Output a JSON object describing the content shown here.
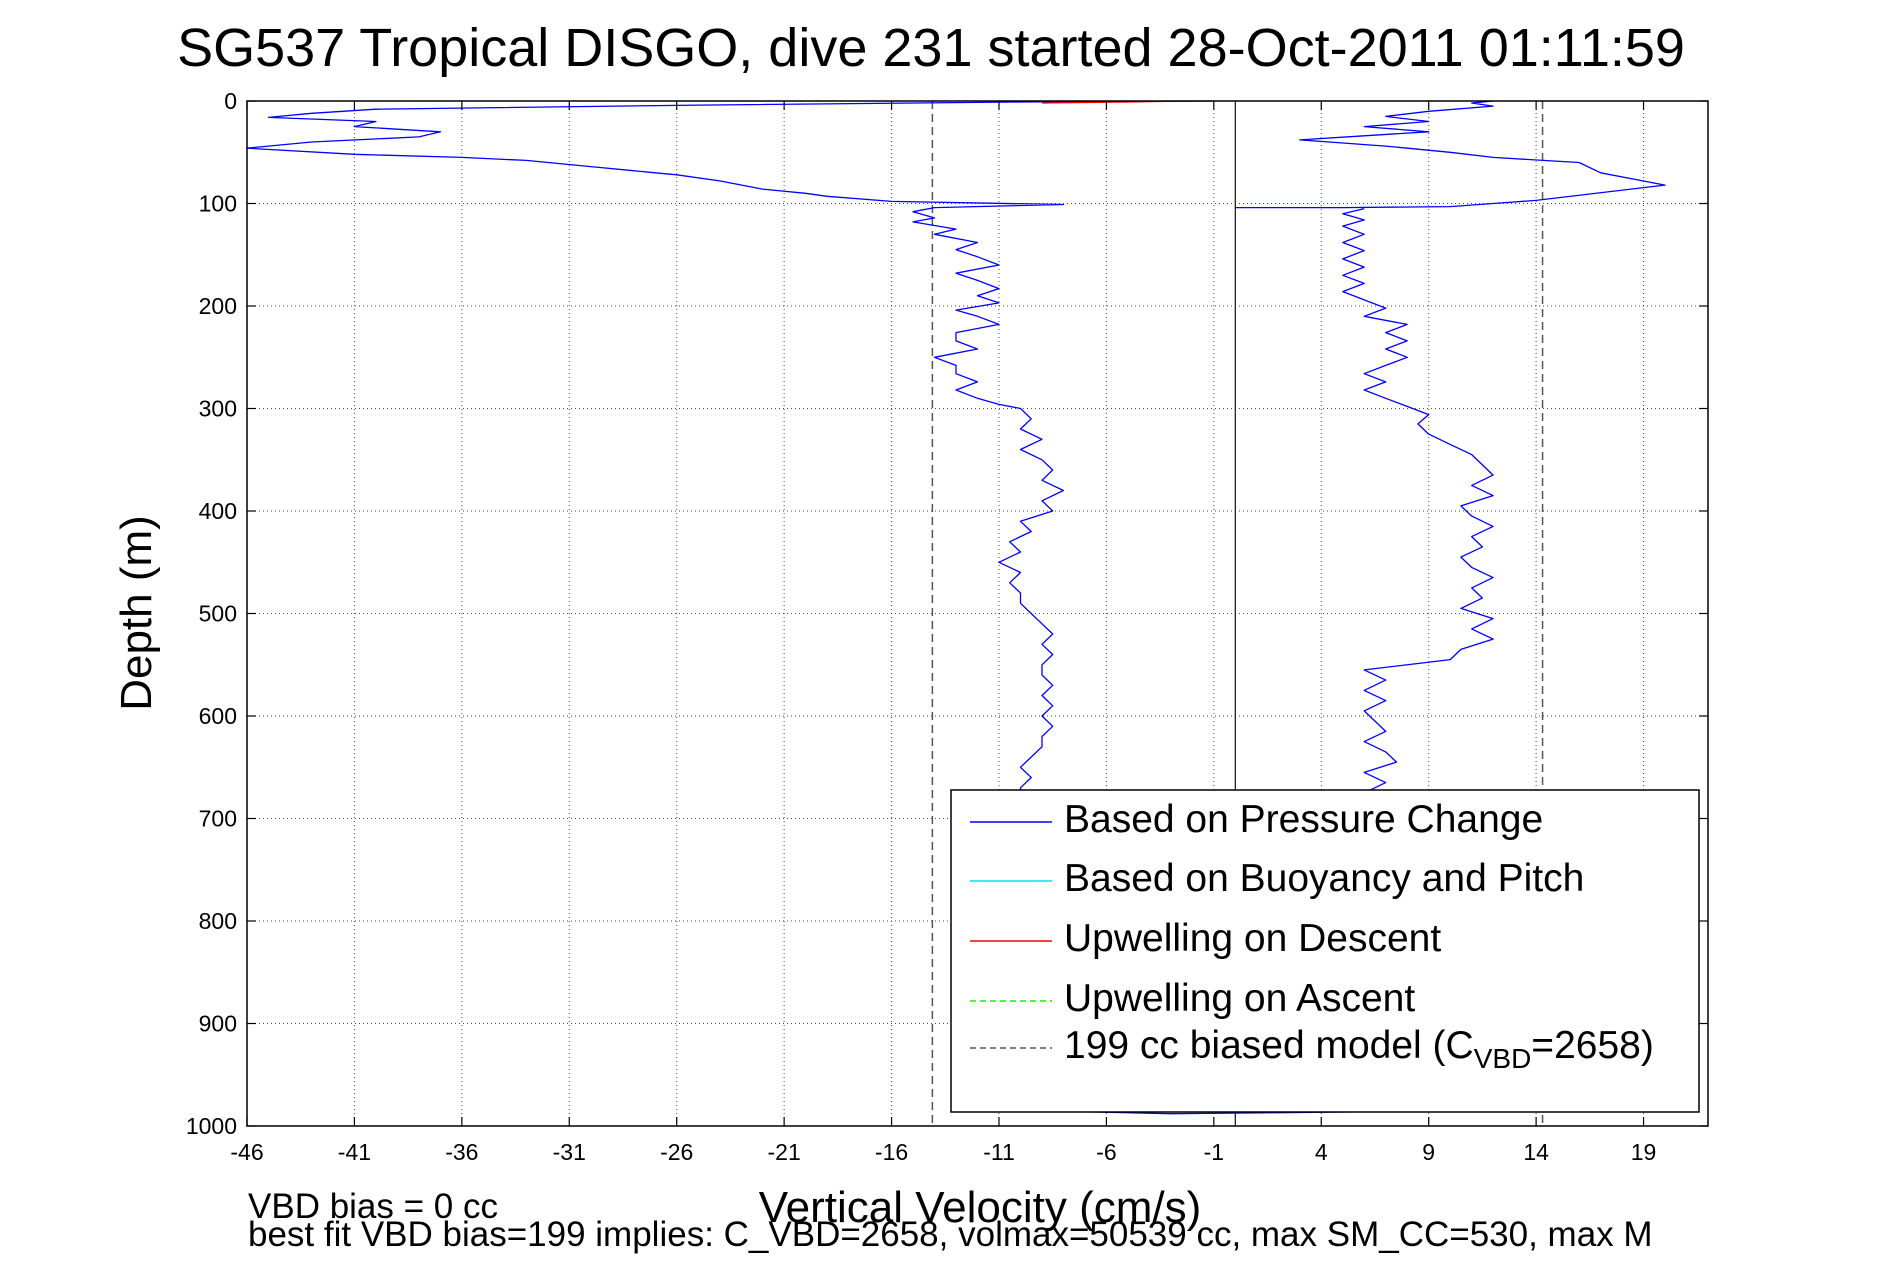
{
  "chart_data": {
    "type": "line",
    "title": "SG537 Tropical DISGO, dive 231 started 28-Oct-2011 01:11:59",
    "xlabel": "Vertical Velocity (cm/s)",
    "ylabel": "Depth (m)",
    "xlim": [
      -46,
      22
    ],
    "ylim": [
      0,
      1000
    ],
    "y_reversed": true,
    "x_ticks": [
      -46,
      -41,
      -36,
      -31,
      -26,
      -21,
      -16,
      -11,
      -6,
      -1,
      4,
      9,
      14,
      19
    ],
    "y_ticks": [
      0,
      100,
      200,
      300,
      400,
      500,
      600,
      700,
      800,
      900,
      1000
    ],
    "grid": true,
    "legend_position": "bottom-right",
    "reference_lines": {
      "model_bias_descent": -14.1,
      "model_bias_ascent": 14.3,
      "zero_line": 0
    },
    "series": [
      {
        "name": "Based on Pressure Change",
        "color": "#0000ff",
        "style": "solid",
        "segments": [
          [
            [
              -1,
              0
            ],
            [
              -10,
              1
            ],
            [
              -25,
              4
            ],
            [
              -40,
              8
            ],
            [
              -43,
              12
            ],
            [
              -45,
              16
            ],
            [
              -40,
              20
            ],
            [
              -41,
              25
            ],
            [
              -37,
              30
            ],
            [
              -38,
              35
            ],
            [
              -43,
              40
            ],
            [
              -46,
              46
            ],
            [
              -41,
              52
            ],
            [
              -36,
              55
            ],
            [
              -33,
              58
            ],
            [
              -30,
              64
            ],
            [
              -27,
              70
            ],
            [
              -26,
              72
            ],
            [
              -24,
              78
            ],
            [
              -22,
              86
            ],
            [
              -20,
              90
            ],
            [
              -19,
              93
            ],
            [
              -16,
              98
            ],
            [
              -8,
              101
            ],
            [
              -14,
              104
            ],
            [
              -15,
              108
            ],
            [
              -14,
              114
            ],
            [
              -15,
              118
            ],
            [
              -13,
              125
            ],
            [
              -14,
              130
            ],
            [
              -12,
              138
            ],
            [
              -13,
              145
            ],
            [
              -12,
              152
            ],
            [
              -11,
              160
            ],
            [
              -13,
              168
            ],
            [
              -12,
              175
            ],
            [
              -11,
              183
            ],
            [
              -12,
              190
            ],
            [
              -11,
              197
            ],
            [
              -13,
              204
            ],
            [
              -12,
              210
            ],
            [
              -11,
              218
            ],
            [
              -13,
              226
            ],
            [
              -13,
              234
            ],
            [
              -12,
              242
            ],
            [
              -14,
              250
            ],
            [
              -13,
              258
            ],
            [
              -13,
              266
            ],
            [
              -12,
              274
            ],
            [
              -13,
              282
            ],
            [
              -12,
              290
            ],
            [
              -11,
              296
            ],
            [
              -10,
              300
            ],
            [
              -9.5,
              310
            ],
            [
              -10,
              320
            ],
            [
              -9,
              330
            ],
            [
              -10,
              340
            ],
            [
              -9,
              350
            ],
            [
              -8.5,
              360
            ],
            [
              -9,
              370
            ],
            [
              -8,
              380
            ],
            [
              -9,
              390
            ],
            [
              -8.5,
              400
            ],
            [
              -10,
              410
            ],
            [
              -9.5,
              420
            ],
            [
              -10.5,
              430
            ],
            [
              -10,
              440
            ],
            [
              -11,
              450
            ],
            [
              -10,
              460
            ],
            [
              -10.5,
              470
            ],
            [
              -10,
              480
            ],
            [
              -10,
              490
            ],
            [
              -9.5,
              500
            ],
            [
              -9,
              510
            ],
            [
              -8.5,
              520
            ],
            [
              -9,
              530
            ],
            [
              -8.5,
              540
            ],
            [
              -9,
              550
            ],
            [
              -9,
              560
            ],
            [
              -8.5,
              570
            ],
            [
              -9,
              580
            ],
            [
              -8.5,
              590
            ],
            [
              -9,
              600
            ],
            [
              -8.5,
              610
            ],
            [
              -9,
              620
            ],
            [
              -9,
              630
            ],
            [
              -9.5,
              640
            ],
            [
              -10,
              650
            ],
            [
              -9.5,
              660
            ],
            [
              -10,
              670
            ],
            [
              -10,
              676
            ]
          ],
          [
            [
              -7,
              986
            ],
            [
              -3,
              988
            ],
            [
              2,
              987
            ],
            [
              6,
              986
            ]
          ],
          [
            [
              0,
              104
            ],
            [
              5,
              104
            ],
            [
              10,
              103
            ],
            [
              12,
              100
            ],
            [
              14,
              97
            ],
            [
              20,
              82
            ],
            [
              17,
              70
            ],
            [
              16,
              60
            ],
            [
              12,
              55
            ],
            [
              10,
              50
            ],
            [
              7,
              44
            ],
            [
              3,
              38
            ],
            [
              6,
              34
            ],
            [
              9,
              30
            ],
            [
              6,
              25
            ],
            [
              9,
              20
            ],
            [
              7,
              15
            ],
            [
              9,
              10
            ],
            [
              12,
              5
            ],
            [
              11,
              2
            ],
            [
              12,
              0
            ]
          ],
          [
            [
              6,
              105
            ],
            [
              5,
              110
            ],
            [
              6,
              116
            ],
            [
              5,
              122
            ],
            [
              6,
              130
            ],
            [
              5,
              138
            ],
            [
              6,
              146
            ],
            [
              5,
              154
            ],
            [
              6,
              162
            ],
            [
              5,
              170
            ],
            [
              6,
              178
            ],
            [
              5,
              186
            ],
            [
              6,
              194
            ],
            [
              7,
              202
            ],
            [
              6,
              210
            ],
            [
              8,
              218
            ],
            [
              7,
              226
            ],
            [
              8,
              234
            ],
            [
              7,
              242
            ],
            [
              8,
              250
            ],
            [
              7,
              258
            ],
            [
              6,
              266
            ],
            [
              7,
              274
            ],
            [
              6,
              282
            ],
            [
              7,
              290
            ],
            [
              8,
              298
            ],
            [
              9,
              306
            ],
            [
              8.5,
              315
            ],
            [
              9,
              325
            ],
            [
              10,
              335
            ],
            [
              11,
              345
            ],
            [
              11.5,
              355
            ],
            [
              12,
              365
            ],
            [
              11,
              375
            ],
            [
              12,
              385
            ],
            [
              10.5,
              395
            ],
            [
              11,
              405
            ],
            [
              12,
              415
            ],
            [
              11,
              425
            ],
            [
              11.5,
              435
            ],
            [
              10.5,
              445
            ],
            [
              11,
              455
            ],
            [
              12,
              465
            ],
            [
              11,
              475
            ],
            [
              11.5,
              485
            ],
            [
              10.5,
              495
            ],
            [
              12,
              505
            ],
            [
              11,
              515
            ],
            [
              12,
              525
            ],
            [
              10.5,
              535
            ],
            [
              10,
              545
            ],
            [
              6,
              555
            ],
            [
              7,
              565
            ],
            [
              6,
              575
            ],
            [
              7,
              585
            ],
            [
              6,
              595
            ],
            [
              6.5,
              605
            ],
            [
              7,
              615
            ],
            [
              6,
              625
            ],
            [
              7,
              635
            ],
            [
              7.5,
              645
            ],
            [
              6,
              655
            ],
            [
              7,
              665
            ],
            [
              6,
              675
            ]
          ]
        ]
      },
      {
        "name": "Based on Buoyancy and Pitch",
        "color": "#00e5ee",
        "style": "solid",
        "segments": []
      },
      {
        "name": "Upwelling on Descent",
        "color": "#ff0000",
        "style": "solid",
        "segments": [
          [
            [
              -9,
              2
            ],
            [
              -5,
              1
            ],
            [
              -2,
              0
            ]
          ]
        ]
      },
      {
        "name": "Upwelling on Ascent",
        "color": "#00ff00",
        "style": "dashed",
        "segments": []
      },
      {
        "name": "199 cc biased model (C_VBD=2658)",
        "color": "#555555",
        "style": "dashed",
        "segments": []
      }
    ],
    "legend_items": [
      {
        "key": "pressure",
        "label": "Based on Pressure Change",
        "color": "#0000ff",
        "dash": "none"
      },
      {
        "key": "buoyancy",
        "label": "Based on Buoyancy and Pitch",
        "color": "#00e5ee",
        "dash": "none"
      },
      {
        "key": "updescent",
        "label": "Upwelling on Descent",
        "color": "#ff0000",
        "dash": "none"
      },
      {
        "key": "upascent",
        "label": "Upwelling on Ascent",
        "color": "#00ff00",
        "dash": "6,4"
      },
      {
        "key": "model",
        "label_main": "199 cc biased model (C",
        "label_sub": "VBD",
        "label_end": "=2658)",
        "color": "#555555",
        "dash": "6,4"
      }
    ]
  },
  "notes": {
    "line1": "VBD bias = 0 cc",
    "line2": "best fit VBD bias=199 implies: C_VBD=2658, volmax=50539 cc, max SM_CC=530, max M"
  }
}
